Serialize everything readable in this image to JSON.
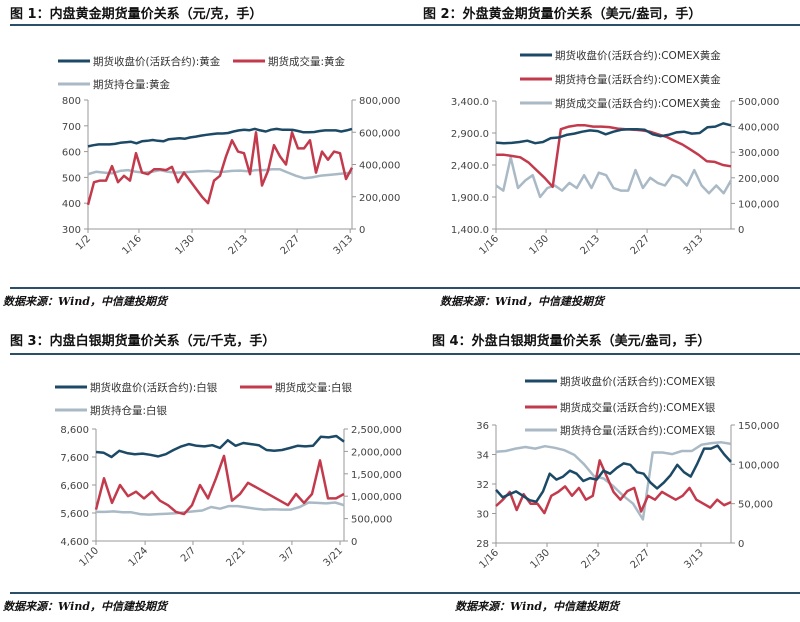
{
  "colors": {
    "price": "#1c4a66",
    "red": "#c23a4c",
    "gray": "#a9bac6",
    "axis": "#999999",
    "rule": "#2b4f66"
  },
  "source": "数据来源：Wind，中信建投期货",
  "chart_data": [
    {
      "type": "line",
      "title": "图 1：内盘黄金期货量价关系（元/克，手）",
      "x_ticks": [
        "1/2",
        "1/16",
        "1/30",
        "2/13",
        "2/27",
        "3/13"
      ],
      "y_left": {
        "range": [
          300,
          800
        ],
        "ticks": [
          "300",
          "400",
          "500",
          "600",
          "700",
          "800"
        ]
      },
      "y_right": {
        "range": [
          0,
          800000
        ],
        "ticks": [
          "0",
          "200,000",
          "400,000",
          "600,000",
          "800,000"
        ]
      },
      "series": [
        {
          "name": "期货收盘价(活跃合约):黄金",
          "color": "price",
          "axis": "left",
          "values": [
            620,
            625,
            628,
            628,
            628,
            630,
            634,
            636,
            638,
            632,
            640,
            642,
            645,
            642,
            640,
            648,
            650,
            652,
            650,
            655,
            658,
            662,
            665,
            668,
            670,
            670,
            672,
            678,
            682,
            685,
            683,
            688,
            682,
            678,
            685,
            688,
            685,
            685,
            684,
            680,
            675,
            675,
            676,
            680,
            682,
            682,
            682,
            678,
            682,
            688
          ]
        },
        {
          "name": "期货成交量:黄金",
          "color": "red",
          "axis": "right",
          "values": [
            150000,
            290000,
            300000,
            300000,
            390000,
            290000,
            330000,
            300000,
            470000,
            350000,
            340000,
            370000,
            370000,
            365000,
            385000,
            290000,
            350000,
            300000,
            250000,
            200000,
            160000,
            300000,
            330000,
            450000,
            550000,
            480000,
            470000,
            340000,
            600000,
            270000,
            360000,
            520000,
            450000,
            400000,
            600000,
            500000,
            500000,
            550000,
            350000,
            480000,
            430000,
            480000,
            470000,
            310000,
            380000
          ]
        },
        {
          "name": "期货持仓量:黄金",
          "color": "gray",
          "axis": "right",
          "values": [
            340000,
            355000,
            350000,
            345000,
            360000,
            365000,
            355000,
            350000,
            355000,
            365000,
            355000,
            350000,
            352000,
            355000,
            358000,
            360000,
            355000,
            355000,
            360000,
            362000,
            358000,
            365000,
            365000,
            370000,
            370000,
            350000,
            330000,
            315000,
            320000,
            330000,
            335000,
            340000,
            345000,
            350000
          ]
        }
      ]
    },
    {
      "type": "line",
      "title": "图 2：外盘黄金期货量价关系（美元/盎司，手）",
      "x_ticks": [
        "1/16",
        "1/30",
        "2/13",
        "2/27",
        "3/13"
      ],
      "y_left": {
        "range": [
          1400,
          3400
        ],
        "ticks": [
          "1,400.0",
          "1,900.0",
          "2,400.0",
          "2,900.0",
          "3,400.0"
        ]
      },
      "y_right": {
        "range": [
          0,
          500000
        ],
        "ticks": [
          "0",
          "100,000",
          "200,000",
          "300,000",
          "400,000",
          "500,000"
        ]
      },
      "series": [
        {
          "name": "期货收盘价(活跃合约):COMEX黄金",
          "color": "price",
          "axis": "left",
          "values": [
            2750,
            2740,
            2745,
            2760,
            2780,
            2740,
            2760,
            2820,
            2830,
            2870,
            2890,
            2920,
            2940,
            2930,
            2880,
            2920,
            2950,
            2960,
            2960,
            2950,
            2880,
            2850,
            2870,
            2910,
            2920,
            2890,
            2900,
            2990,
            3000,
            3050,
            3020
          ]
        },
        {
          "name": "期货持仓量(活跃合约):COMEX黄金",
          "color": "red",
          "axis": "right",
          "values": [
            290000,
            290000,
            285000,
            280000,
            260000,
            230000,
            200000,
            165000,
            390000,
            400000,
            405000,
            405000,
            400000,
            400000,
            398000,
            392000,
            390000,
            388000,
            385000,
            380000,
            370000,
            360000,
            345000,
            330000,
            310000,
            290000,
            265000,
            262000,
            250000,
            245000
          ]
        },
        {
          "name": "期货成交量(活跃合约):COMEX黄金",
          "color": "gray",
          "axis": "right",
          "values": [
            170000,
            150000,
            280000,
            160000,
            190000,
            210000,
            125000,
            160000,
            170000,
            150000,
            180000,
            160000,
            210000,
            160000,
            220000,
            210000,
            160000,
            150000,
            150000,
            230000,
            160000,
            200000,
            180000,
            170000,
            210000,
            200000,
            170000,
            230000,
            170000,
            140000,
            170000,
            140000,
            190000
          ]
        }
      ]
    },
    {
      "type": "line",
      "title": "图 3：内盘白银期货量价关系（元/千克，手）",
      "x_ticks": [
        "1/10",
        "1/24",
        "2/7",
        "2/21",
        "3/7",
        "3/21"
      ],
      "y_left": {
        "range": [
          4600,
          8600
        ],
        "ticks": [
          "4,600",
          "5,600",
          "6,600",
          "7,600",
          "8,600"
        ]
      },
      "y_right": {
        "range": [
          0,
          2500000
        ],
        "ticks": [
          "0",
          "500,000",
          "1,000,000",
          "1,500,000",
          "2,000,000",
          "2,500,000"
        ]
      },
      "series": [
        {
          "name": "期货收盘价(活跃合约):白银",
          "color": "price",
          "axis": "left",
          "values": [
            7780,
            7750,
            7600,
            7820,
            7740,
            7700,
            7720,
            7680,
            7620,
            7700,
            7850,
            7980,
            8060,
            8000,
            7980,
            8020,
            7920,
            8200,
            8000,
            8100,
            8060,
            8020,
            7850,
            7820,
            7850,
            7920,
            8000,
            7980,
            8000,
            8320,
            8300,
            8350,
            8150
          ]
        },
        {
          "name": "期货成交量:白银",
          "color": "red",
          "axis": "right",
          "values": [
            700000,
            1400000,
            850000,
            1250000,
            1000000,
            1100000,
            950000,
            1100000,
            900000,
            800000,
            650000,
            600000,
            800000,
            1250000,
            950000,
            1400000,
            1900000,
            900000,
            1050000,
            1300000,
            1200000,
            1100000,
            1000000,
            900000,
            800000,
            1050000,
            850000,
            1050000,
            1800000,
            950000,
            950000,
            1050000
          ]
        },
        {
          "name": "期货持仓量:白银",
          "color": "gray",
          "axis": "right",
          "values": [
            650000,
            650000,
            660000,
            640000,
            640000,
            600000,
            590000,
            600000,
            610000,
            620000,
            640000,
            660000,
            680000,
            760000,
            720000,
            780000,
            780000,
            750000,
            720000,
            700000,
            710000,
            700000,
            700000,
            760000,
            860000,
            850000,
            840000,
            860000,
            800000
          ]
        }
      ]
    },
    {
      "type": "line",
      "title": "图 4：外盘白银期货量价关系（美元/盎司，手）",
      "x_ticks": [
        "1/16",
        "1/30",
        "2/13",
        "2/27",
        "3/13"
      ],
      "y_left": {
        "range": [
          28,
          36
        ],
        "ticks": [
          "28",
          "30",
          "32",
          "34",
          "36"
        ]
      },
      "y_right": {
        "range": [
          0,
          150000
        ],
        "ticks": [
          "0",
          "50,000",
          "100,000",
          "150,000"
        ]
      },
      "series": [
        {
          "name": "期货收盘价(活跃合约):COMEX银",
          "color": "price",
          "axis": "left",
          "values": [
            31.6,
            31.1,
            31.3,
            31.5,
            31.2,
            30.9,
            30.8,
            31.5,
            32.7,
            32.3,
            32.5,
            32.9,
            32.7,
            32.2,
            32.4,
            32.3,
            32.9,
            32.7,
            33.1,
            33.4,
            33.3,
            32.8,
            32.7,
            32.1,
            31.7,
            32.1,
            32.6,
            33.3,
            32.8,
            32.5,
            33.4,
            34.4,
            34.4,
            34.6,
            34.0,
            33.5
          ]
        },
        {
          "name": "期货成交量(活跃合约):COMEX银",
          "color": "red",
          "axis": "right",
          "values": [
            47000,
            55000,
            65000,
            42000,
            62000,
            50000,
            50000,
            38000,
            60000,
            65000,
            72000,
            60000,
            70000,
            55000,
            60000,
            105000,
            85000,
            65000,
            55000,
            66000,
            70000,
            40000,
            60000,
            55000,
            65000,
            60000,
            55000,
            60000,
            70000,
            55000,
            50000,
            45000,
            55000,
            48000,
            52000
          ]
        },
        {
          "name": "期货持仓量(活跃合约):COMEX银",
          "color": "gray",
          "axis": "right",
          "values": [
            116000,
            117000,
            120000,
            122000,
            120000,
            123000,
            121000,
            118000,
            112000,
            100000,
            85000,
            82000,
            72000,
            60000,
            50000,
            30000,
            115000,
            115000,
            113000,
            117000,
            117000,
            125000,
            127000,
            128000,
            126000
          ]
        }
      ]
    }
  ]
}
